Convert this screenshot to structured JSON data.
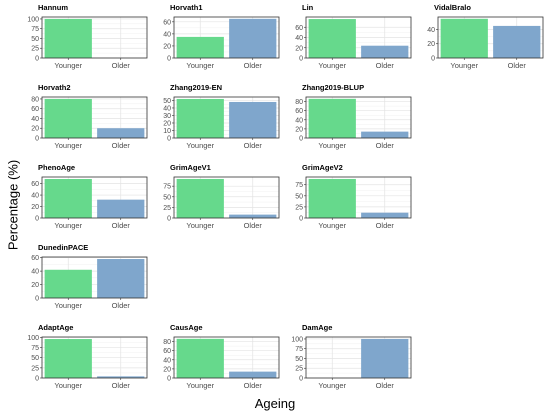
{
  "chart_data": {
    "type": "bar",
    "xlabel": "Ageing",
    "ylabel": "Percentage (%)",
    "categories": [
      "Younger",
      "Older"
    ],
    "colors": {
      "Younger": "#66d98c",
      "Older": "#7fa6cc"
    },
    "grid": true,
    "panels": [
      {
        "name": "Hannum",
        "values": [
          100,
          0
        ],
        "yticks": [
          0,
          25,
          50,
          75,
          100
        ],
        "ylim": [
          0,
          105
        ]
      },
      {
        "name": "Horvath1",
        "values": [
          35,
          65
        ],
        "yticks": [
          0,
          20,
          40,
          60
        ],
        "ylim": [
          0,
          68
        ]
      },
      {
        "name": "Lin",
        "values": [
          76,
          24
        ],
        "yticks": [
          0,
          20,
          40,
          60
        ],
        "ylim": [
          0,
          80
        ]
      },
      {
        "name": "VidalBralo",
        "values": [
          55,
          45
        ],
        "yticks": [
          0,
          20,
          40
        ],
        "ylim": [
          0,
          57.5
        ]
      },
      {
        "name": "Horvath2",
        "values": [
          80,
          20
        ],
        "yticks": [
          0,
          20,
          40,
          60,
          80
        ],
        "ylim": [
          0,
          84
        ]
      },
      {
        "name": "Zhang2019-EN",
        "values": [
          52,
          48
        ],
        "yticks": [
          0,
          10,
          20,
          30,
          40,
          50
        ],
        "ylim": [
          0,
          54.6
        ]
      },
      {
        "name": "Zhang2019-BLUP",
        "values": [
          86,
          14
        ],
        "yticks": [
          0,
          20,
          40,
          60,
          80
        ],
        "ylim": [
          0,
          90
        ]
      },
      {
        "name": "PhenoAge",
        "values": [
          68,
          32
        ],
        "yticks": [
          0,
          20,
          40,
          60
        ],
        "ylim": [
          0,
          71.5
        ]
      },
      {
        "name": "GrimAgeV1",
        "values": [
          92,
          8
        ],
        "yticks": [
          0,
          25,
          50,
          75
        ],
        "ylim": [
          0,
          96.6
        ]
      },
      {
        "name": "GrimAgeV2",
        "values": [
          88,
          12
        ],
        "yticks": [
          0,
          25,
          50,
          75
        ],
        "ylim": [
          0,
          92.4
        ]
      },
      {
        "name": "DunedinPACE",
        "values": [
          42,
          58
        ],
        "yticks": [
          0,
          20,
          40,
          60
        ],
        "ylim": [
          0,
          61
        ]
      },
      {
        "name": "AdaptAge",
        "values": [
          96,
          4
        ],
        "yticks": [
          0,
          25,
          50,
          75,
          100
        ],
        "ylim": [
          0,
          101
        ]
      },
      {
        "name": "CausAge",
        "values": [
          86,
          14
        ],
        "yticks": [
          0,
          20,
          40,
          60,
          80
        ],
        "ylim": [
          0,
          90
        ]
      },
      {
        "name": "DamAge",
        "values": [
          0,
          100
        ],
        "yticks": [
          0,
          25,
          50,
          75,
          100
        ],
        "ylim": [
          0,
          105
        ]
      }
    ]
  }
}
